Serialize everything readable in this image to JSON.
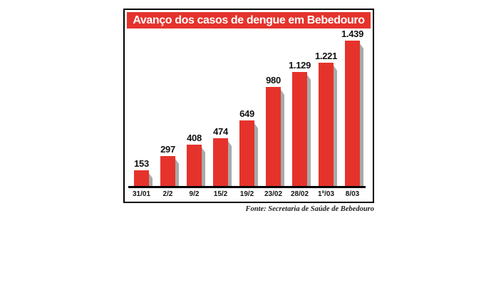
{
  "chart_data": {
    "type": "bar",
    "title": "Avanço dos casos de dengue em Bebedouro",
    "categories": [
      "31/01",
      "2/2",
      "9/2",
      "15/2",
      "19/2",
      "23/02",
      "28/02",
      "1º/03",
      "8/03"
    ],
    "values": [
      153,
      297,
      408,
      474,
      649,
      980,
      1129,
      1221,
      1439
    ],
    "value_labels": [
      "153",
      "297",
      "408",
      "474",
      "649",
      "980",
      "1.129",
      "1.221",
      "1.439"
    ],
    "source": "Fonte: Secretaria de Saúde de Bebedouro",
    "xlabel": "",
    "ylabel": "",
    "ylim": [
      0,
      1500
    ],
    "grid": false,
    "legend": "none",
    "colors": {
      "bar": "#e5332c",
      "bar_shadow": "#a9a9a9",
      "title_bg": "#e5332c",
      "title_text": "#ffffff",
      "border": "#000000",
      "label_text": "#111111"
    }
  }
}
